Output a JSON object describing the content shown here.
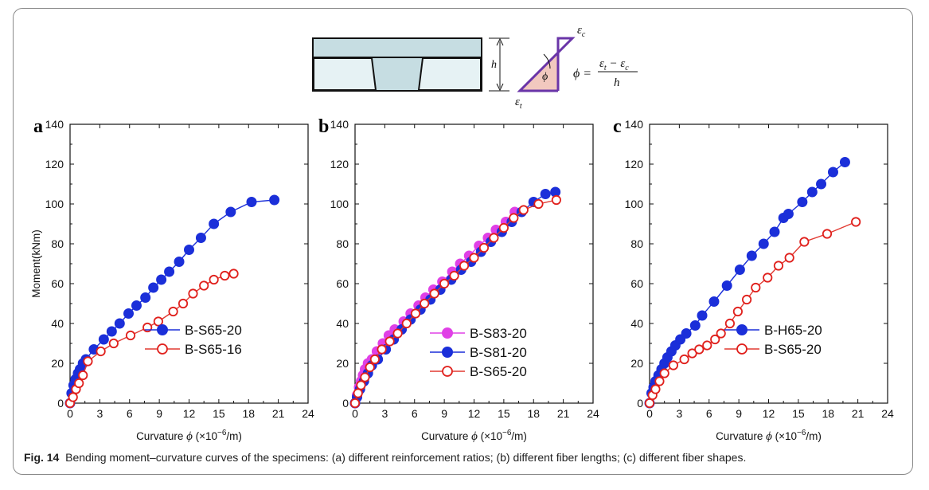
{
  "figure": {
    "caption_label": "Fig. 14",
    "caption_text": "Bending moment–curvature curves of the specimens: (a) different reinforcement ratios; (b) different fiber lengths; (c) different fiber shapes."
  },
  "schematic": {
    "h_label": "h",
    "eps_c": "ε",
    "eps_c_sub": "c",
    "eps_t": "ε",
    "eps_t_sub": "t",
    "phi": "ϕ",
    "formula_lhs": "ϕ =",
    "formula_numerator": "ε",
    "formula_denominator": "h",
    "colors": {
      "slab": "#c6dde2",
      "strain_fill": "#f2c9bf",
      "strain_line": "#6a35a8"
    }
  },
  "colors": {
    "blue": "#1b2fd9",
    "red": "#e0201c",
    "magenta": "#e040e6",
    "line_red": "#e23a32"
  },
  "chart_data": [
    {
      "type": "line",
      "panel_letter": "a",
      "ylabel": "Moment(kNm)",
      "xlabel": "Curvature",
      "xlabel_symbol": "ϕ",
      "xlabel_unit": "(×10",
      "xlabel_exp": "−6",
      "xlabel_tail": "/m)",
      "xlim": [
        0,
        24
      ],
      "ylim": [
        0,
        140
      ],
      "xticks": [
        "0",
        "3",
        "6",
        "9",
        "12",
        "15",
        "18",
        "21",
        "24"
      ],
      "yticks": [
        "0",
        "20",
        "40",
        "60",
        "80",
        "100",
        "120",
        "140"
      ],
      "legend_position": "bottom-right",
      "series": [
        {
          "name": "B-S65-20",
          "marker": "filled",
          "color": "#1b2fd9",
          "points": [
            [
              0,
              0
            ],
            [
              0.15,
              5
            ],
            [
              0.35,
              9
            ],
            [
              0.55,
              12
            ],
            [
              0.8,
              15
            ],
            [
              1.0,
              17
            ],
            [
              1.3,
              20
            ],
            [
              1.6,
              22
            ],
            [
              2.4,
              27
            ],
            [
              3.4,
              32
            ],
            [
              4.2,
              36
            ],
            [
              5.0,
              40
            ],
            [
              5.9,
              45
            ],
            [
              6.7,
              49
            ],
            [
              7.6,
              53
            ],
            [
              8.4,
              58
            ],
            [
              9.2,
              62
            ],
            [
              10.0,
              66
            ],
            [
              11.0,
              71
            ],
            [
              12.0,
              77
            ],
            [
              13.2,
              83
            ],
            [
              14.5,
              90
            ],
            [
              16.2,
              96
            ],
            [
              18.3,
              101
            ],
            [
              20.6,
              102
            ]
          ]
        },
        {
          "name": "B-S65-16",
          "marker": "open",
          "color": "#e0201c",
          "points": [
            [
              0,
              0
            ],
            [
              0.3,
              3
            ],
            [
              0.6,
              7
            ],
            [
              0.9,
              10
            ],
            [
              1.3,
              14
            ],
            [
              1.8,
              21
            ],
            [
              3.1,
              26
            ],
            [
              4.4,
              30
            ],
            [
              6.1,
              34
            ],
            [
              7.8,
              38
            ],
            [
              8.9,
              41
            ],
            [
              10.4,
              46
            ],
            [
              11.4,
              50
            ],
            [
              12.4,
              55
            ],
            [
              13.5,
              59
            ],
            [
              14.5,
              62
            ],
            [
              15.6,
              64
            ],
            [
              16.5,
              65
            ]
          ]
        }
      ]
    },
    {
      "type": "line",
      "panel_letter": "b",
      "ylabel": "",
      "xlabel": "Curvature",
      "xlabel_symbol": "ϕ",
      "xlabel_unit": "(×10",
      "xlabel_exp": "−6",
      "xlabel_tail": "/m)",
      "xlim": [
        0,
        24
      ],
      "ylim": [
        0,
        140
      ],
      "xticks": [
        "0",
        "3",
        "6",
        "9",
        "12",
        "15",
        "18",
        "21",
        "24"
      ],
      "yticks": [
        "0",
        "20",
        "40",
        "60",
        "80",
        "100",
        "120",
        "140"
      ],
      "legend_position": "bottom-right",
      "series": [
        {
          "name": "B-S83-20",
          "marker": "filled",
          "color": "#e040e6",
          "points": [
            [
              0,
              0
            ],
            [
              0.2,
              4
            ],
            [
              0.4,
              8
            ],
            [
              0.6,
              11
            ],
            [
              0.8,
              14
            ],
            [
              1.0,
              17
            ],
            [
              1.3,
              20
            ],
            [
              1.7,
              22
            ],
            [
              2.2,
              26
            ],
            [
              2.8,
              30
            ],
            [
              3.4,
              34
            ],
            [
              4.0,
              37
            ],
            [
              4.9,
              41
            ],
            [
              5.6,
              45
            ],
            [
              6.4,
              49
            ],
            [
              7.1,
              53
            ],
            [
              7.9,
              57
            ],
            [
              8.8,
              61
            ],
            [
              9.8,
              66
            ],
            [
              10.6,
              70
            ],
            [
              11.5,
              74
            ],
            [
              12.5,
              79
            ],
            [
              13.4,
              83
            ],
            [
              14.2,
              87
            ],
            [
              15.2,
              91
            ],
            [
              16.1,
              96
            ]
          ]
        },
        {
          "name": "B-S81-20",
          "marker": "filled",
          "color": "#1b2fd9",
          "points": [
            [
              0,
              0
            ],
            [
              0.2,
              3
            ],
            [
              0.5,
              7
            ],
            [
              0.9,
              11
            ],
            [
              1.3,
              15
            ],
            [
              1.7,
              19
            ],
            [
              2.3,
              22
            ],
            [
              3.1,
              27
            ],
            [
              3.9,
              32
            ],
            [
              4.7,
              37
            ],
            [
              5.6,
              42
            ],
            [
              6.6,
              47
            ],
            [
              7.6,
              52
            ],
            [
              8.6,
              57
            ],
            [
              9.7,
              62
            ],
            [
              10.7,
              67
            ],
            [
              11.7,
              71
            ],
            [
              12.7,
              76
            ],
            [
              13.7,
              81
            ],
            [
              14.8,
              86
            ],
            [
              15.8,
              91
            ],
            [
              16.8,
              96
            ],
            [
              18.0,
              101
            ],
            [
              19.2,
              105
            ],
            [
              20.2,
              106
            ]
          ]
        },
        {
          "name": "B-S65-20",
          "marker": "open",
          "color": "#e0201c",
          "points": [
            [
              0,
              0
            ],
            [
              0.3,
              5
            ],
            [
              0.6,
              9
            ],
            [
              1.0,
              13
            ],
            [
              1.5,
              18
            ],
            [
              2.0,
              22
            ],
            [
              2.7,
              27
            ],
            [
              3.5,
              31
            ],
            [
              4.3,
              35
            ],
            [
              5.2,
              40
            ],
            [
              6.1,
              45
            ],
            [
              7.0,
              50
            ],
            [
              8.0,
              55
            ],
            [
              9.0,
              60
            ],
            [
              10.0,
              64
            ],
            [
              11.0,
              69
            ],
            [
              12.0,
              73
            ],
            [
              13.0,
              78
            ],
            [
              14.0,
              83
            ],
            [
              15.0,
              88
            ],
            [
              16.0,
              93
            ],
            [
              17.0,
              97
            ],
            [
              18.5,
              100
            ],
            [
              20.3,
              102
            ]
          ]
        }
      ]
    },
    {
      "type": "line",
      "panel_letter": "c",
      "ylabel": "",
      "xlabel": "Curvature",
      "xlabel_symbol": "ϕ",
      "xlabel_unit": "(×10",
      "xlabel_exp": "−6",
      "xlabel_tail": "/m)",
      "xlim": [
        0,
        24
      ],
      "ylim": [
        0,
        140
      ],
      "xticks": [
        "0",
        "3",
        "6",
        "9",
        "12",
        "15",
        "18",
        "21",
        "24"
      ],
      "yticks": [
        "0",
        "20",
        "40",
        "60",
        "80",
        "100",
        "120",
        "140"
      ],
      "legend_position": "bottom-right",
      "series": [
        {
          "name": "B-H65-20",
          "marker": "filled",
          "color": "#1b2fd9",
          "points": [
            [
              0,
              0
            ],
            [
              0.2,
              5
            ],
            [
              0.4,
              8
            ],
            [
              0.6,
              11
            ],
            [
              0.9,
              14
            ],
            [
              1.2,
              17
            ],
            [
              1.5,
              20
            ],
            [
              1.8,
              23
            ],
            [
              2.2,
              26
            ],
            [
              2.6,
              29
            ],
            [
              3.1,
              32
            ],
            [
              3.7,
              35
            ],
            [
              4.6,
              39
            ],
            [
              5.3,
              44
            ],
            [
              6.5,
              51
            ],
            [
              7.8,
              59
            ],
            [
              9.1,
              67
            ],
            [
              10.3,
              74
            ],
            [
              11.5,
              80
            ],
            [
              12.6,
              86
            ],
            [
              13.5,
              93
            ],
            [
              14.0,
              95
            ],
            [
              15.4,
              101
            ],
            [
              16.4,
              106
            ],
            [
              17.3,
              110
            ],
            [
              18.5,
              116
            ],
            [
              19.7,
              121
            ]
          ]
        },
        {
          "name": "B-S65-20",
          "marker": "open",
          "color": "#e0201c",
          "points": [
            [
              0,
              0
            ],
            [
              0.3,
              4
            ],
            [
              0.6,
              7
            ],
            [
              1.0,
              11
            ],
            [
              1.5,
              15
            ],
            [
              2.4,
              19
            ],
            [
              3.5,
              22
            ],
            [
              4.3,
              25
            ],
            [
              5.0,
              27
            ],
            [
              5.8,
              29
            ],
            [
              6.6,
              32
            ],
            [
              7.2,
              35
            ],
            [
              8.1,
              40
            ],
            [
              8.9,
              46
            ],
            [
              9.8,
              52
            ],
            [
              10.7,
              58
            ],
            [
              11.9,
              63
            ],
            [
              13.0,
              69
            ],
            [
              14.1,
              73
            ],
            [
              15.6,
              81
            ],
            [
              17.9,
              85
            ],
            [
              20.8,
              91
            ]
          ]
        }
      ]
    }
  ]
}
